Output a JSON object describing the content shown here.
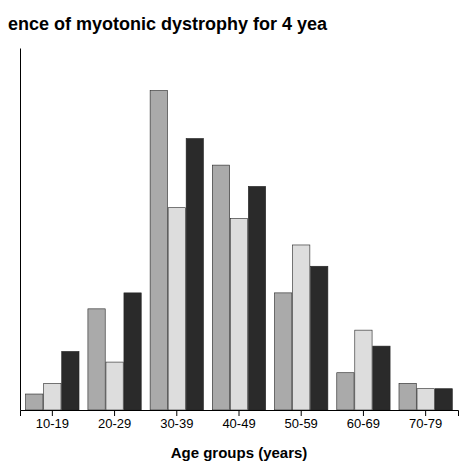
{
  "chart_data": {
    "type": "bar",
    "title": "ence of myotonic dystrophy for 4 yea",
    "xlabel": "Age groups (years)",
    "categories": [
      "10-19",
      "20-29",
      "30-39",
      "40-49",
      "50-59",
      "60-69",
      "70-79"
    ],
    "series": [
      {
        "color": "#aaaaaa",
        "values": [
          3,
          19,
          60,
          46,
          22,
          7,
          5
        ]
      },
      {
        "color": "#dddddd",
        "values": [
          5,
          9,
          38,
          36,
          31,
          15,
          4
        ]
      },
      {
        "color": "#2a2a2a",
        "values": [
          11,
          22,
          51,
          42,
          27,
          12,
          4
        ]
      }
    ],
    "ylim": [
      0,
      68
    ],
    "grid": false,
    "tick_labels": "x"
  }
}
